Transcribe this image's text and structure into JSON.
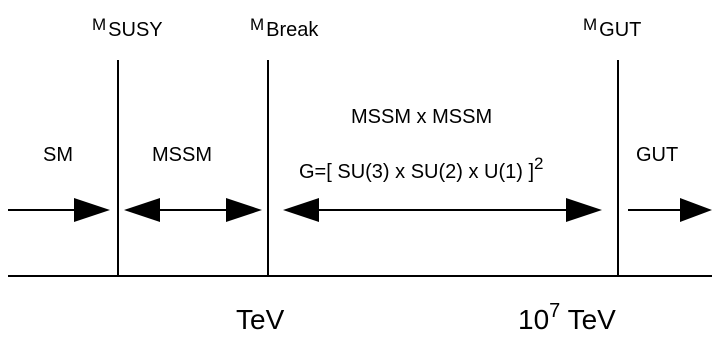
{
  "scales": [
    {
      "symbol": "M",
      "subscript": "SUSY"
    },
    {
      "symbol": "M",
      "subscript": "Break"
    },
    {
      "symbol": "M",
      "subscript": "GUT"
    }
  ],
  "regions": {
    "sm": "SM",
    "mssm": "MSSM",
    "mssm_x_mssm": "MSSM x MSSM",
    "gauge_group": "G=[ SU(3) x SU(2) x U(1) ]",
    "gauge_group_exponent": "2",
    "gut": "GUT"
  },
  "energy_axis": {
    "tev_label": "TeV",
    "high_base": "10",
    "high_exponent": "7",
    "high_unit": "TeV"
  }
}
